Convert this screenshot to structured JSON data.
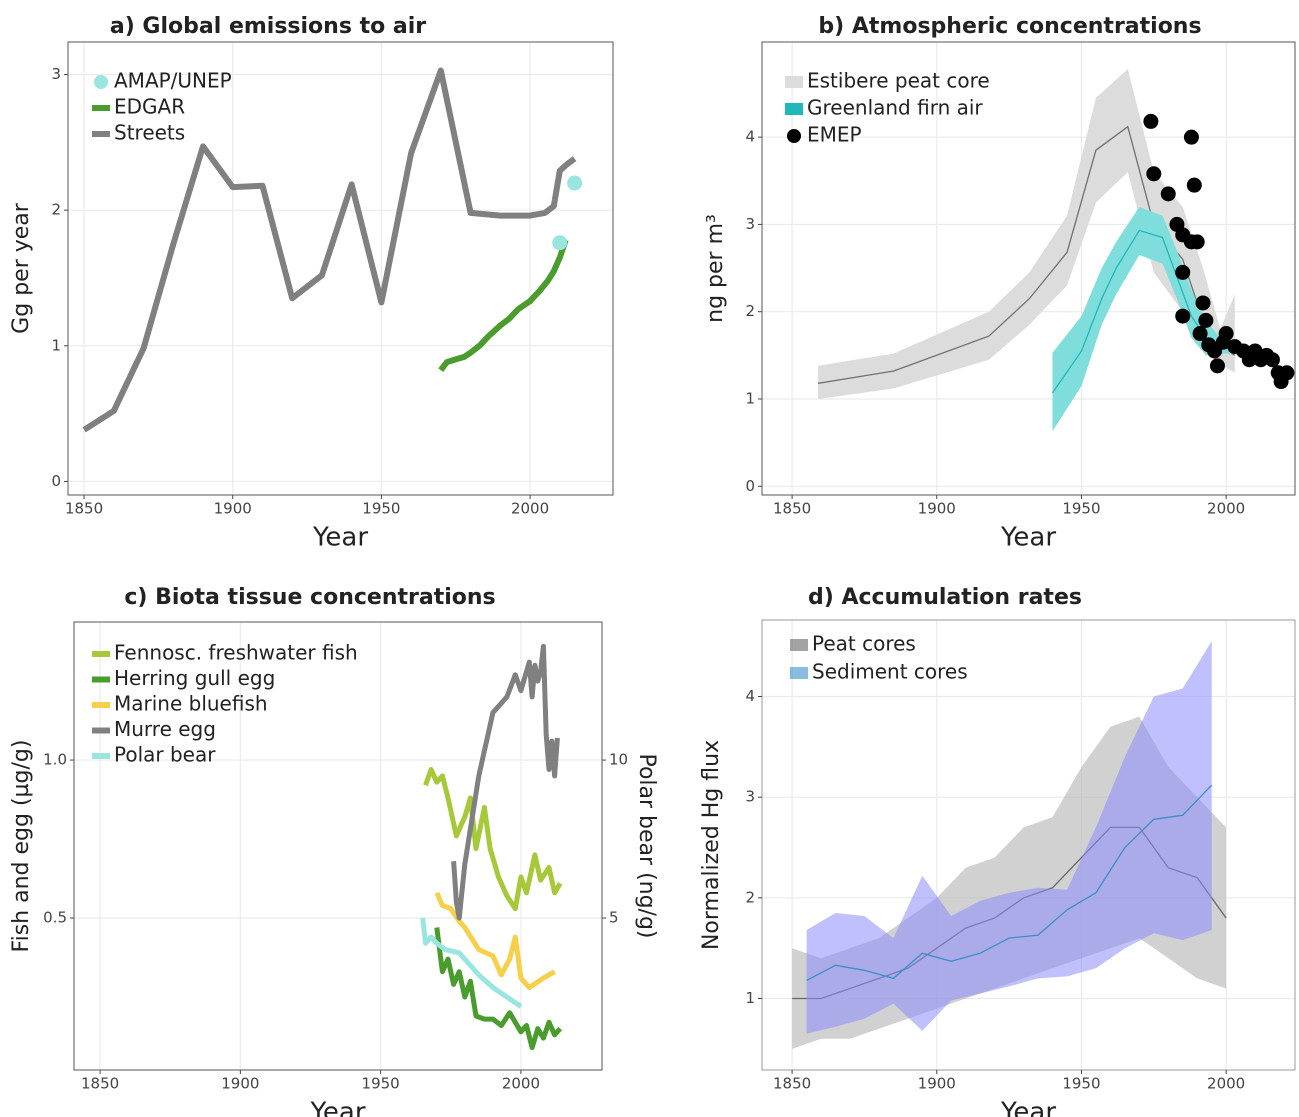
{
  "chart_data": [
    {
      "type": "line",
      "title": "a) Global emissions to air",
      "x_label": "Year",
      "y_label": "Gg per year",
      "xlim": [
        1844.6,
        2027.9
      ],
      "ylim": [
        -0.1,
        3.24
      ],
      "xticks": [
        1850,
        1900,
        1950,
        2000
      ],
      "yticks": [
        0,
        1,
        2,
        3
      ],
      "grid": true,
      "legend": "top-left",
      "series": [
        {
          "name": "AMAP/UNEP",
          "type": "scatter",
          "color": "#99e6e0",
          "x": [
            2010,
            2015
          ],
          "values": [
            1.76,
            2.2
          ]
        },
        {
          "name": "EDGAR",
          "type": "line",
          "color": "#4a9c2d",
          "x": [
            1970,
            1972,
            1975,
            1978,
            1980,
            1983,
            1986,
            1990,
            1993,
            1996,
            2000,
            2003,
            2006,
            2008,
            2010,
            2012
          ],
          "values": [
            0.82,
            0.88,
            0.9,
            0.92,
            0.95,
            1.0,
            1.07,
            1.15,
            1.2,
            1.27,
            1.33,
            1.4,
            1.48,
            1.55,
            1.65,
            1.78
          ]
        },
        {
          "name": "Streets",
          "type": "line",
          "color": "#808080",
          "x": [
            1850,
            1860,
            1870,
            1880,
            1890,
            1900,
            1910,
            1920,
            1930,
            1940,
            1950,
            1960,
            1970,
            1980,
            1990,
            2000,
            2005,
            2008,
            2010,
            2012,
            2015
          ],
          "values": [
            0.38,
            0.52,
            0.98,
            1.75,
            2.47,
            2.17,
            2.18,
            1.35,
            1.52,
            2.19,
            1.32,
            2.42,
            3.03,
            1.98,
            1.96,
            1.96,
            1.98,
            2.03,
            2.29,
            2.33,
            2.38
          ]
        }
      ]
    },
    {
      "type": "line",
      "title": "b) Atmospheric concentrations",
      "x_label": "Year",
      "y_label": "ng per m³",
      "xlim": [
        1839.6,
        2023.8
      ],
      "ylim": [
        -0.1,
        5.09
      ],
      "xticks": [
        1850,
        1900,
        1950,
        2000
      ],
      "yticks": [
        0,
        1,
        2,
        3,
        4
      ],
      "grid": true,
      "legend": "top-left",
      "series": [
        {
          "name": "Estibere peat core",
          "type": "band",
          "color": "#707070",
          "band_color": "#dcdcdc",
          "x": [
            1859,
            1885,
            1918,
            1932,
            1945,
            1955,
            1966,
            1975,
            1985,
            1992,
            1998,
            2003
          ],
          "values": [
            1.18,
            1.32,
            1.72,
            2.15,
            2.68,
            3.85,
            4.12,
            3.0,
            2.6,
            1.9,
            1.6,
            1.5
          ],
          "lower": [
            1.0,
            1.12,
            1.45,
            1.85,
            2.3,
            3.25,
            3.6,
            2.45,
            2.0,
            1.55,
            1.4,
            1.3
          ],
          "upper": [
            1.38,
            1.52,
            2.0,
            2.45,
            3.1,
            4.45,
            4.78,
            3.6,
            3.2,
            2.5,
            1.8,
            2.2
          ]
        },
        {
          "name": "Greenland firn air",
          "type": "band",
          "color": "#20b8b8",
          "band_color": "#7fdedb",
          "x": [
            1940,
            1950,
            1957,
            1962,
            1970,
            1978,
            1983,
            1988,
            1993,
            1998,
            2003
          ],
          "values": [
            1.07,
            1.55,
            2.15,
            2.5,
            2.93,
            2.85,
            2.4,
            1.95,
            1.7,
            1.6,
            1.58
          ],
          "lower": [
            0.63,
            1.15,
            1.85,
            2.2,
            2.65,
            2.55,
            2.15,
            1.7,
            1.5,
            1.52,
            1.52
          ],
          "upper": [
            1.53,
            1.95,
            2.5,
            2.8,
            3.2,
            3.1,
            2.7,
            2.25,
            1.9,
            1.7,
            1.65
          ]
        },
        {
          "name": "EMEP",
          "type": "scatter",
          "color": "#000000",
          "x": [
            1974,
            1975,
            1980,
            1983,
            1985,
            1988,
            1989,
            1985,
            1988,
            1990,
            1992,
            1985,
            1991,
            1993,
            1994,
            1996,
            1997,
            1999,
            2000,
            2003,
            2006,
            2008,
            2010,
            2012,
            2014,
            2016,
            2018,
            2019,
            2021
          ],
          "values": [
            4.18,
            3.58,
            3.35,
            3.0,
            2.88,
            4.0,
            3.45,
            2.45,
            2.8,
            2.8,
            2.1,
            1.95,
            1.75,
            1.9,
            1.62,
            1.55,
            1.38,
            1.65,
            1.75,
            1.6,
            1.55,
            1.45,
            1.55,
            1.45,
            1.5,
            1.45,
            1.3,
            1.2,
            1.3
          ]
        }
      ]
    },
    {
      "type": "line",
      "title": "c) Biota tissue concentrations",
      "x_label": "Year",
      "y_label": "Fish and egg (µg/g)",
      "y2_label": "Polar bear (ng/g)",
      "xlim": [
        1840.7,
        2028.9
      ],
      "ylim": [
        0.019,
        1.437
      ],
      "y2lim": [
        0.19,
        14.37
      ],
      "xticks": [
        1850,
        1900,
        1950,
        2000
      ],
      "yticks": [
        0.5,
        {
          "value": 1,
          "label": "1.0"
        }
      ],
      "y2ticks": [
        5,
        10
      ],
      "grid": true,
      "legend": "top-left",
      "series": [
        {
          "name": "Fennosc. freshwater fish",
          "type": "line",
          "color": "#a6c93a",
          "x": [
            1966,
            1968,
            1970,
            1972,
            1974,
            1977,
            1980,
            1982,
            1984,
            1987,
            1989,
            1992,
            1995,
            1998,
            2000,
            2002,
            2005,
            2007,
            2010,
            2012,
            2014
          ],
          "values": [
            0.92,
            0.97,
            0.93,
            0.95,
            0.88,
            0.76,
            0.82,
            0.88,
            0.72,
            0.85,
            0.72,
            0.63,
            0.57,
            0.53,
            0.63,
            0.58,
            0.7,
            0.62,
            0.66,
            0.58,
            0.61
          ]
        },
        {
          "name": "Herring gull egg",
          "type": "line",
          "color": "#4a9c2d",
          "x": [
            1970,
            1972,
            1974,
            1976,
            1978,
            1980,
            1982,
            1984,
            1987,
            1990,
            1993,
            1996,
            2000,
            2002,
            2004,
            2006,
            2008,
            2010,
            2012,
            2014
          ],
          "values": [
            0.47,
            0.33,
            0.37,
            0.29,
            0.33,
            0.25,
            0.3,
            0.19,
            0.18,
            0.18,
            0.16,
            0.2,
            0.14,
            0.16,
            0.09,
            0.15,
            0.12,
            0.17,
            0.13,
            0.15
          ]
        },
        {
          "name": "Marine bluefish",
          "type": "line",
          "color": "#f7d04a",
          "x": [
            1970,
            1972,
            1975,
            1978,
            1980,
            1985,
            1990,
            1993,
            1996,
            1998,
            2000,
            2003,
            2008,
            2012
          ],
          "values": [
            0.58,
            0.54,
            0.53,
            0.49,
            0.47,
            0.4,
            0.38,
            0.32,
            0.37,
            0.44,
            0.31,
            0.28,
            0.31,
            0.33
          ]
        },
        {
          "name": "Murre egg",
          "type": "line",
          "color": "#808080",
          "x": [
            1976,
            1977,
            1978,
            1980,
            1985,
            1990,
            1995,
            1998,
            2000,
            2003,
            2004,
            2005,
            2006,
            2007,
            2008,
            2009,
            2010,
            2011,
            2012,
            2013
          ],
          "values": [
            0.68,
            0.55,
            0.5,
            0.67,
            0.95,
            1.15,
            1.2,
            1.27,
            1.22,
            1.31,
            1.2,
            1.3,
            1.25,
            1.28,
            1.36,
            1.08,
            0.97,
            1.06,
            0.95,
            1.07
          ]
        },
        {
          "name": "Polar bear",
          "type": "line",
          "axis": "y2",
          "color": "#99e6e0",
          "x": [
            1965,
            1966,
            1968,
            1970,
            1973,
            1978,
            1985,
            1990,
            2000
          ],
          "values": [
            5.0,
            4.2,
            4.4,
            4.2,
            4.0,
            3.9,
            3.2,
            2.8,
            2.2
          ]
        }
      ]
    },
    {
      "type": "line",
      "title": "d) Accumulation rates",
      "x_label": "Year",
      "y_label": "Normalized Hg flux",
      "xlim": [
        1839.6,
        2023.8
      ],
      "ylim": [
        0.29,
        4.76
      ],
      "xticks": [
        1850,
        1900,
        1950,
        2000
      ],
      "yticks": [
        1,
        2,
        3,
        4
      ],
      "grid": true,
      "legend": "top-left",
      "series": [
        {
          "name": "Peat cores",
          "type": "band",
          "color": "#666666",
          "band_color": "#bdbdbd",
          "x": [
            1850,
            1860,
            1870,
            1880,
            1890,
            1900,
            1910,
            1920,
            1930,
            1940,
            1950,
            1960,
            1970,
            1980,
            1990,
            2000
          ],
          "values": [
            1.0,
            1.0,
            1.1,
            1.2,
            1.3,
            1.5,
            1.7,
            1.8,
            2.0,
            2.1,
            2.4,
            2.7,
            2.7,
            2.3,
            2.2,
            1.8
          ],
          "lower": [
            0.5,
            0.6,
            0.6,
            0.7,
            0.8,
            0.9,
            1.0,
            1.1,
            1.2,
            1.3,
            1.4,
            1.5,
            1.6,
            1.4,
            1.2,
            1.1
          ],
          "upper": [
            1.5,
            1.4,
            1.5,
            1.6,
            1.8,
            2.0,
            2.3,
            2.4,
            2.7,
            2.8,
            3.3,
            3.7,
            3.8,
            3.3,
            3.0,
            2.7
          ]
        },
        {
          "name": "Sediment cores",
          "type": "band",
          "color": "#3a8fc8",
          "band_color": "#8c8cff",
          "x": [
            1855,
            1865,
            1875,
            1885,
            1895,
            1905,
            1915,
            1925,
            1935,
            1945,
            1955,
            1965,
            1975,
            1985,
            1995
          ],
          "values": [
            1.18,
            1.33,
            1.28,
            1.2,
            1.45,
            1.37,
            1.45,
            1.6,
            1.63,
            1.88,
            2.05,
            2.5,
            2.78,
            2.82,
            3.12
          ],
          "lower": [
            0.65,
            0.72,
            0.8,
            0.95,
            0.68,
            0.98,
            1.05,
            1.12,
            1.2,
            1.22,
            1.3,
            1.5,
            1.65,
            1.58,
            1.68
          ],
          "upper": [
            1.68,
            1.85,
            1.82,
            1.6,
            2.22,
            1.82,
            1.97,
            2.05,
            2.1,
            2.08,
            2.7,
            3.4,
            4.0,
            4.08,
            4.55
          ]
        }
      ]
    }
  ]
}
